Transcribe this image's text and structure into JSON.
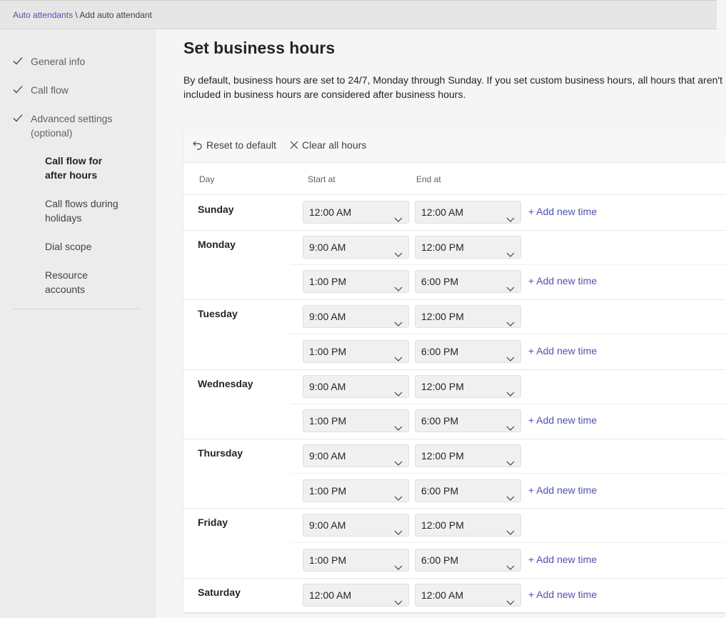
{
  "breadcrumb": {
    "parent": "Auto attendants",
    "separator": " \\ ",
    "current": "Add auto attendant"
  },
  "sidebar": {
    "steps": [
      {
        "label": "General info",
        "completed": true
      },
      {
        "label": "Call flow",
        "completed": true
      },
      {
        "label": "Advanced settings (optional)",
        "completed": true
      }
    ],
    "substeps": [
      {
        "label": "Call flow for after hours",
        "active": true
      },
      {
        "label": "Call flows during holidays",
        "active": false
      },
      {
        "label": "Dial scope",
        "active": false
      },
      {
        "label": "Resource accounts",
        "active": false
      }
    ]
  },
  "main": {
    "title": "Set business hours",
    "description": "By default, business hours are set to 24/7, Monday through Sunday. If you set custom business hours, all hours that aren't included in business hours are considered after business hours."
  },
  "toolbar": {
    "reset_label": "Reset to default",
    "clear_label": "Clear all hours"
  },
  "table": {
    "columns": {
      "day": "Day",
      "start": "Start at",
      "end": "End at"
    },
    "add_label": "+ Add new time",
    "days": [
      {
        "name": "Sunday",
        "slots": [
          {
            "start": "12:00 AM",
            "end": "12:00 AM"
          }
        ]
      },
      {
        "name": "Monday",
        "slots": [
          {
            "start": "9:00 AM",
            "end": "12:00 PM"
          },
          {
            "start": "1:00 PM",
            "end": "6:00 PM"
          }
        ]
      },
      {
        "name": "Tuesday",
        "slots": [
          {
            "start": "9:00 AM",
            "end": "12:00 PM"
          },
          {
            "start": "1:00 PM",
            "end": "6:00 PM"
          }
        ]
      },
      {
        "name": "Wednesday",
        "slots": [
          {
            "start": "9:00 AM",
            "end": "12:00 PM"
          },
          {
            "start": "1:00 PM",
            "end": "6:00 PM"
          }
        ]
      },
      {
        "name": "Thursday",
        "slots": [
          {
            "start": "9:00 AM",
            "end": "12:00 PM"
          },
          {
            "start": "1:00 PM",
            "end": "6:00 PM"
          }
        ]
      },
      {
        "name": "Friday",
        "slots": [
          {
            "start": "9:00 AM",
            "end": "12:00 PM"
          },
          {
            "start": "1:00 PM",
            "end": "6:00 PM"
          }
        ]
      },
      {
        "name": "Saturday",
        "slots": [
          {
            "start": "12:00 AM",
            "end": "12:00 AM"
          }
        ]
      }
    ]
  },
  "colors": {
    "accent": "#4f52b2",
    "sidebar_bg": "#ececec",
    "topbar_bg": "#e6e6e6"
  },
  "icons": {
    "check": "check-icon",
    "reset": "undo-arrow-icon",
    "clear": "close-icon",
    "dropdown": "chevron-down-icon"
  }
}
